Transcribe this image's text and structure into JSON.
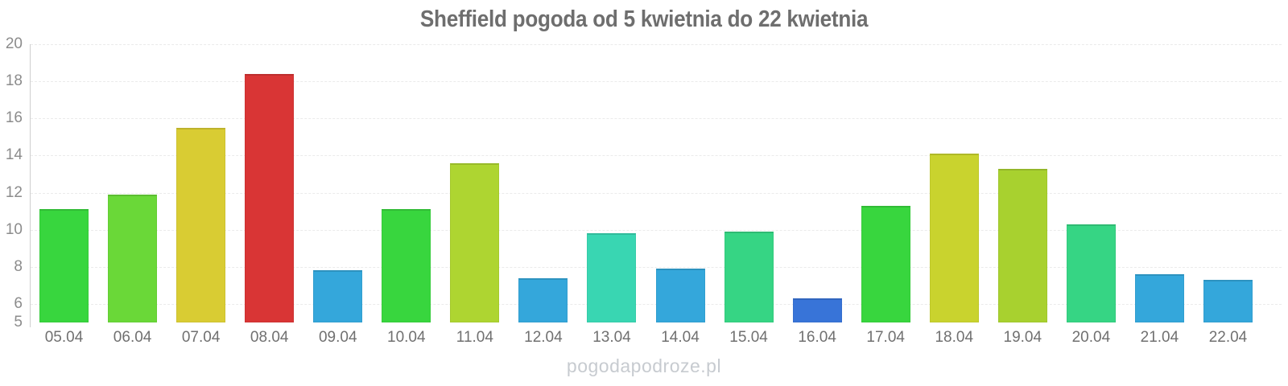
{
  "title": {
    "text": "Sheffield pogoda od 5 kwietnia do 22 kwietnia",
    "color": "#6e6e6e"
  },
  "watermark": {
    "text": "pogodapodroze.pl",
    "color": "#c7cbd0"
  },
  "colors": {
    "background": "#ffffff",
    "gridline": "#ebebeb",
    "axis_line": "#cfcfcf",
    "y_tick_text": "#8c8c8c",
    "x_tick_text": "#707070"
  },
  "chart_data": {
    "type": "bar",
    "title": "Sheffield pogoda od 5 kwietnia do 22 kwietnia",
    "categories": [
      "05.04",
      "06.04",
      "07.04",
      "08.04",
      "09.04",
      "10.04",
      "11.04",
      "12.04",
      "13.04",
      "14.04",
      "15.04",
      "16.04",
      "17.04",
      "18.04",
      "19.04",
      "20.04",
      "21.04",
      "22.04"
    ],
    "values": [
      11.1,
      11.9,
      15.5,
      18.4,
      7.8,
      11.1,
      13.6,
      7.4,
      9.8,
      7.9,
      9.9,
      6.3,
      11.3,
      14.1,
      13.3,
      10.3,
      7.6,
      7.3
    ],
    "bar_colors": [
      "#38d63e",
      "#6ad838",
      "#d9cc33",
      "#d93535",
      "#34a7db",
      "#38d63e",
      "#aed531",
      "#34a7db",
      "#39d6b2",
      "#34a7db",
      "#36d584",
      "#3874d8",
      "#38d63e",
      "#c9d32e",
      "#a8d12f",
      "#36d584",
      "#34a7db",
      "#34a7db"
    ],
    "xlabel": "",
    "ylabel": "",
    "ylim": [
      5,
      20
    ],
    "y_ticks": [
      5,
      6,
      8,
      10,
      12,
      14,
      16,
      18,
      20
    ],
    "grid": "horizontal-dashed",
    "legend": "none",
    "watermark": "pogodapodroze.pl"
  }
}
